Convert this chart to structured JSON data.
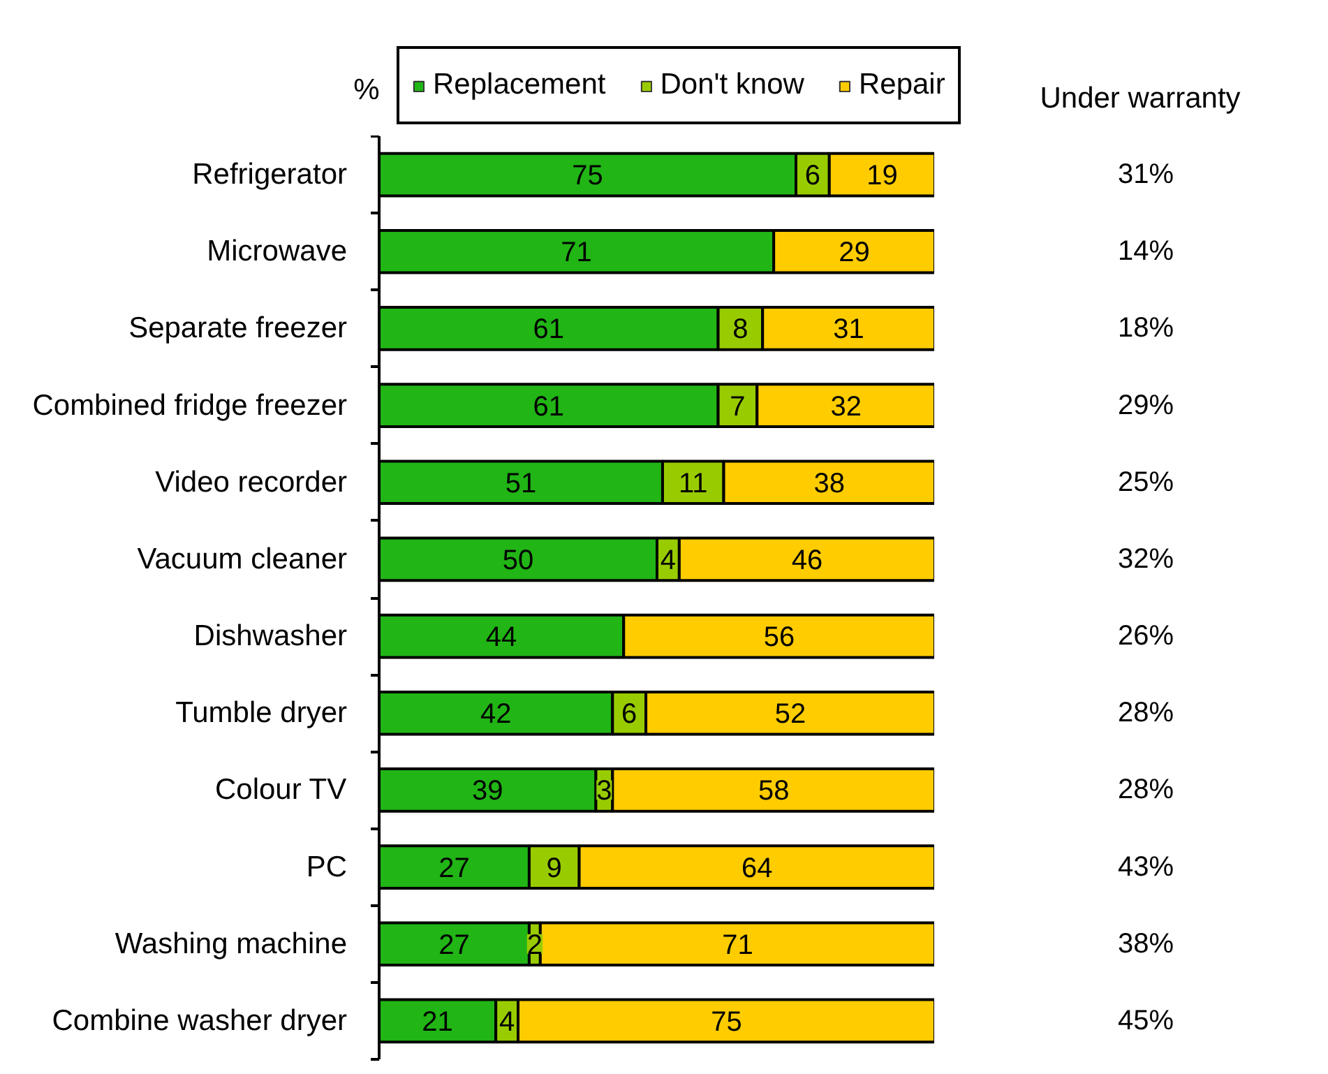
{
  "chart_data": {
    "type": "bar",
    "orientation": "horizontal",
    "stacked": true,
    "xlabel": "%",
    "categories": [
      "Refrigerator",
      "Microwave",
      "Separate freezer",
      "Combined fridge freezer",
      "Video recorder",
      "Vacuum cleaner",
      "Dishwasher",
      "Tumble dryer",
      "Colour TV",
      "PC",
      "Washing machine",
      "Combine washer dryer"
    ],
    "series": [
      {
        "name": "Replacement",
        "color": "#21b516",
        "values": [
          75,
          71,
          61,
          61,
          51,
          50,
          44,
          42,
          39,
          27,
          27,
          21
        ]
      },
      {
        "name": "Don't know",
        "color": "#99cc00",
        "values": [
          6,
          null,
          8,
          7,
          11,
          4,
          null,
          6,
          3,
          9,
          2,
          4
        ]
      },
      {
        "name": "Repair",
        "color": "#ffcc00",
        "values": [
          19,
          29,
          31,
          32,
          38,
          46,
          56,
          52,
          58,
          64,
          71,
          75
        ]
      }
    ],
    "xlim": [
      0,
      100
    ],
    "data_labels": true,
    "legend": "top",
    "tick_labels": "y",
    "annotations": [
      "Under warranty",
      "31%",
      "14%",
      "18%",
      "29%",
      "25%",
      "32%",
      "26%",
      "28%",
      "28%",
      "43%",
      "38%",
      "45%"
    ]
  }
}
